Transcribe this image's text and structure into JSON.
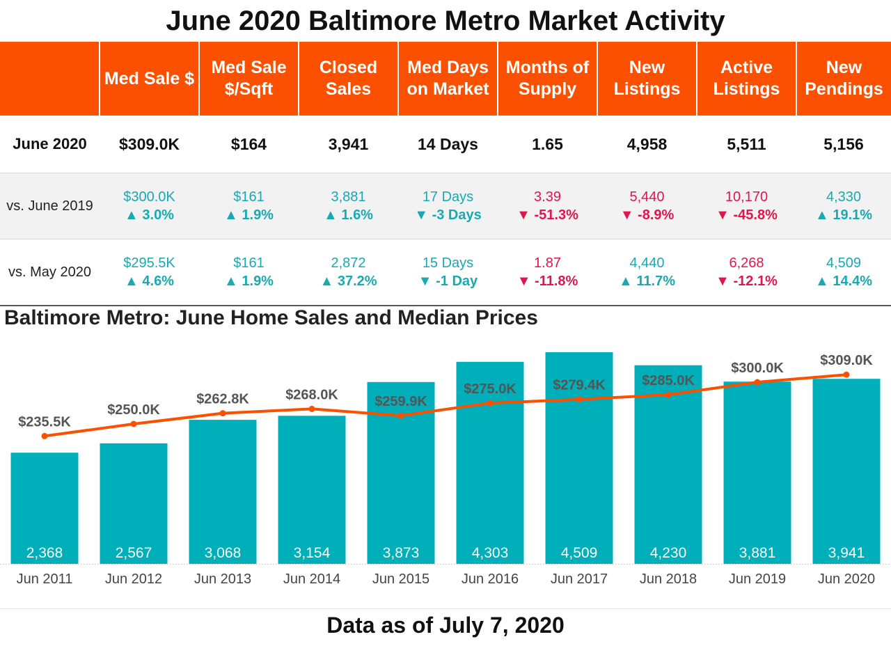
{
  "title": "June 2020 Baltimore Metro Market Activity",
  "colors": {
    "header_bg": "#fa5000",
    "bar": "#00afb9",
    "line": "#fa5000",
    "positive": "#18a9b1",
    "negative": "#e0164d"
  },
  "table": {
    "headers": [
      "",
      "Med Sale $",
      "Med Sale $/Sqft",
      "Closed Sales",
      "Med Days on Market",
      "Months of Supply",
      "New Listings",
      "Active Listings",
      "New Pendings"
    ],
    "current": {
      "label": "June 2020",
      "values": [
        "$309.0K",
        "$164",
        "3,941",
        "14 Days",
        "1.65",
        "4,958",
        "5,511",
        "5,156"
      ]
    },
    "comparisons": [
      {
        "label": "vs. June 2019",
        "cells": [
          {
            "prev": "$300.0K",
            "change": "▲ 3.0%",
            "tone": "pos"
          },
          {
            "prev": "$161",
            "change": "▲ 1.9%",
            "tone": "pos"
          },
          {
            "prev": "3,881",
            "change": "▲ 1.6%",
            "tone": "pos"
          },
          {
            "prev": "17 Days",
            "change": "▼ -3 Days",
            "tone": "pos"
          },
          {
            "prev": "3.39",
            "change": "▼ -51.3%",
            "tone": "neg"
          },
          {
            "prev": "5,440",
            "change": "▼ -8.9%",
            "tone": "neg"
          },
          {
            "prev": "10,170",
            "change": "▼ -45.8%",
            "tone": "neg"
          },
          {
            "prev": "4,330",
            "change": "▲ 19.1%",
            "tone": "pos"
          }
        ]
      },
      {
        "label": "vs. May 2020",
        "cells": [
          {
            "prev": "$295.5K",
            "change": "▲ 4.6%",
            "tone": "pos"
          },
          {
            "prev": "$161",
            "change": "▲ 1.9%",
            "tone": "pos"
          },
          {
            "prev": "2,872",
            "change": "▲ 37.2%",
            "tone": "pos"
          },
          {
            "prev": "15 Days",
            "change": "▼ -1 Day",
            "tone": "pos"
          },
          {
            "prev": "1.87",
            "change": "▼ -11.8%",
            "tone": "neg"
          },
          {
            "prev": "4,440",
            "change": "▲ 11.7%",
            "tone": "pos"
          },
          {
            "prev": "6,268",
            "change": "▼ -12.1%",
            "tone": "neg"
          },
          {
            "prev": "4,509",
            "change": "▲ 14.4%",
            "tone": "pos"
          }
        ]
      }
    ]
  },
  "chart_data": {
    "type": "bar",
    "title": "Baltimore Metro: June Home Sales and Median Prices",
    "categories": [
      "Jun 2011",
      "Jun 2012",
      "Jun 2013",
      "Jun 2014",
      "Jun 2015",
      "Jun 2016",
      "Jun 2017",
      "Jun 2018",
      "Jun 2019",
      "Jun 2020"
    ],
    "series": [
      {
        "name": "Closed Sales",
        "kind": "bar",
        "values": [
          2368,
          2567,
          3068,
          3154,
          3873,
          4303,
          4509,
          4230,
          3881,
          3941
        ],
        "labels": [
          "2,368",
          "2,567",
          "3,068",
          "3,154",
          "3,873",
          "4,303",
          "4,509",
          "4,230",
          "3,881",
          "3,941"
        ]
      },
      {
        "name": "Median Sale Price",
        "kind": "line",
        "values": [
          235500,
          250000,
          262800,
          268000,
          259900,
          275000,
          279400,
          285000,
          300000,
          309000
        ],
        "labels": [
          "$235.5K",
          "$250.0K",
          "$262.8K",
          "$268.0K",
          "$259.9K",
          "$275.0K",
          "$279.4K",
          "$285.0K",
          "$300.0K",
          "$309.0K"
        ]
      }
    ],
    "bar_ylim": [
      0,
      4700
    ],
    "line_ylim": [
      220000,
      320000
    ],
    "xlabel": "",
    "ylabel": ""
  },
  "footer": "Data as of July 7, 2020"
}
